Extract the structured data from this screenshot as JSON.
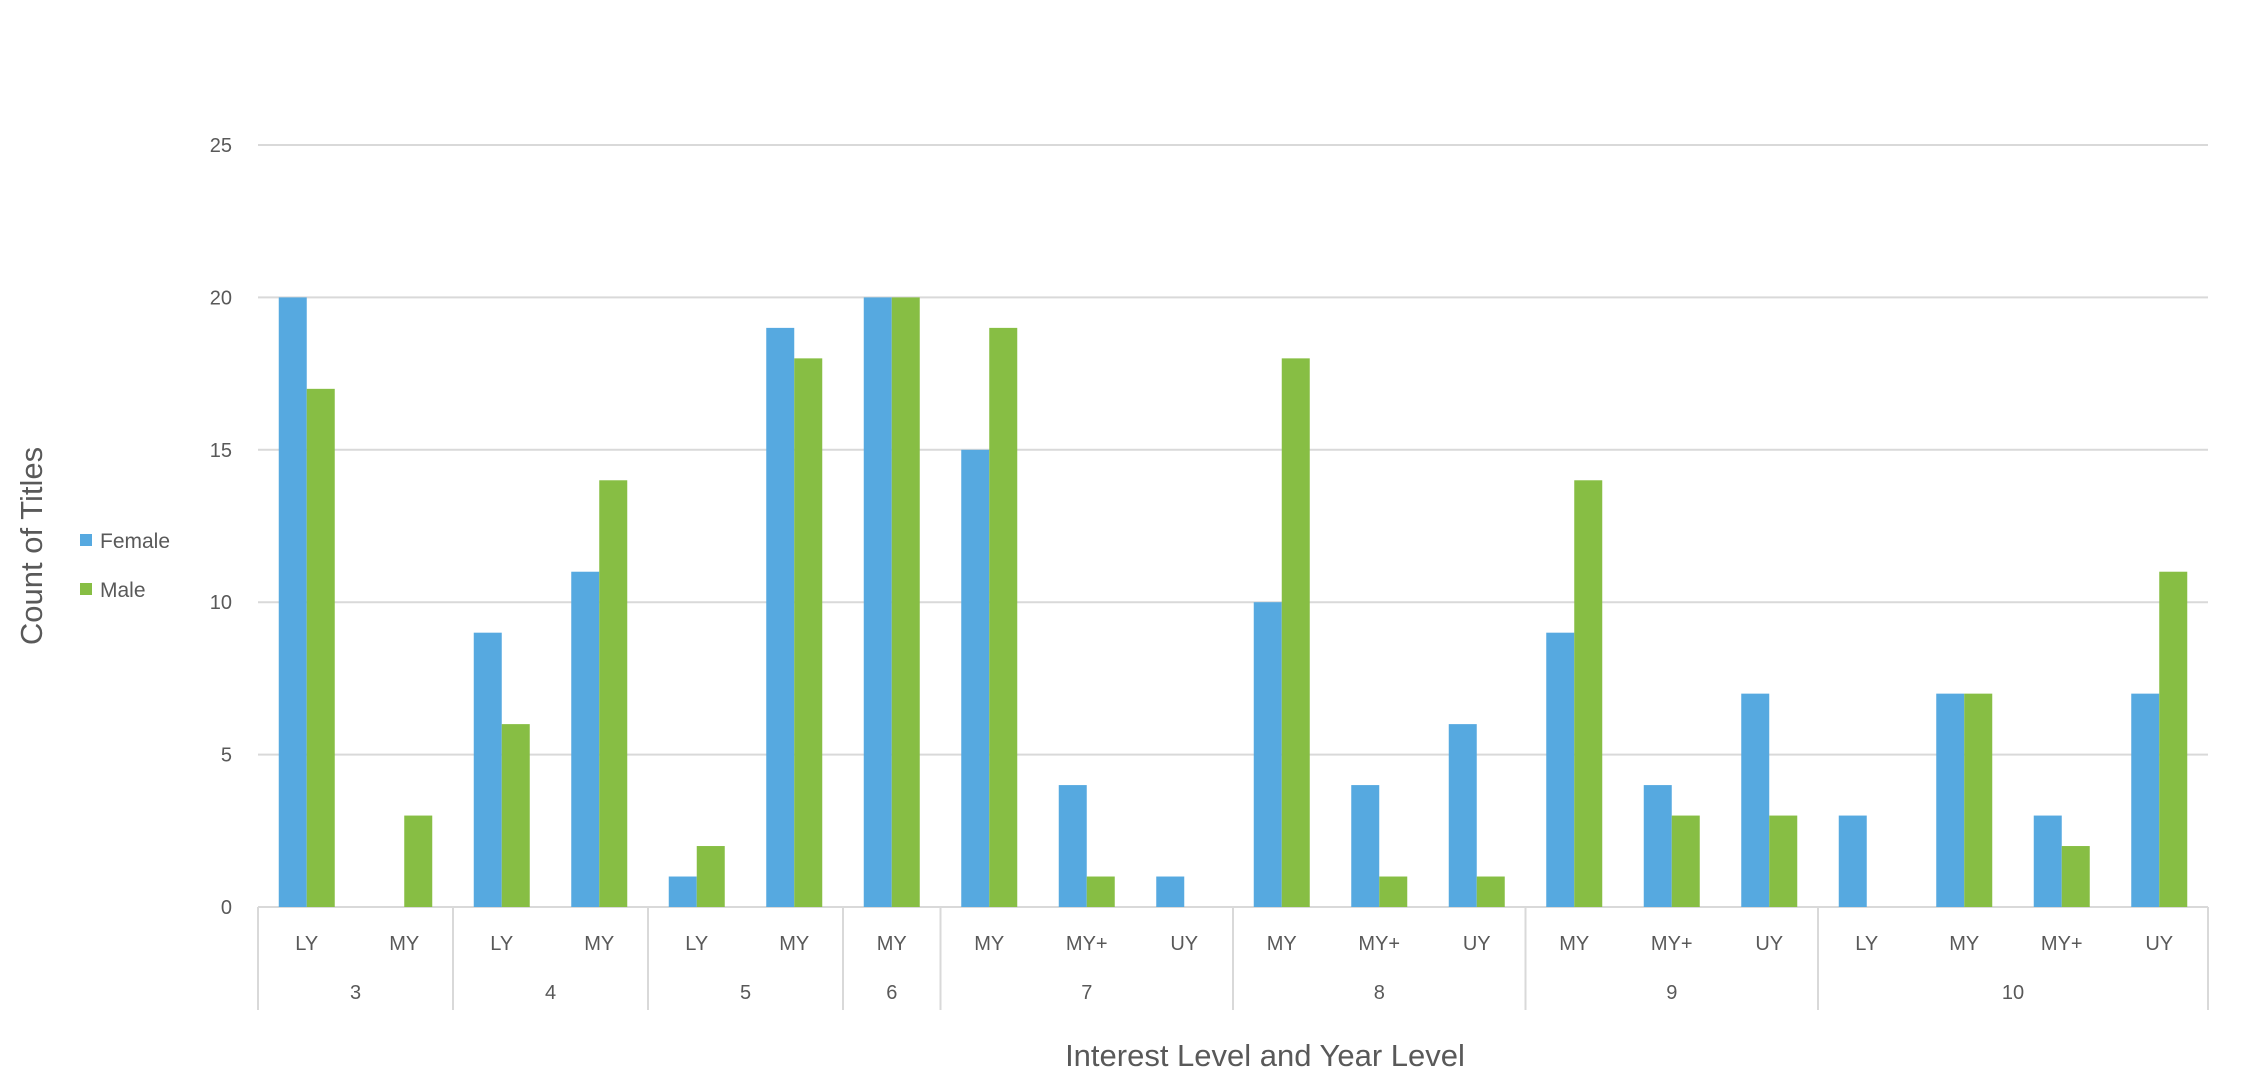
{
  "colors": {
    "female": "#56a9e0",
    "male": "#87be44",
    "grid": "#d9d9d9",
    "text": "#595959"
  },
  "chart_data": {
    "type": "bar",
    "xlabel": "Interest Level and Year Level",
    "ylabel": "Count of Titles",
    "ylim": [
      0,
      25
    ],
    "yticks": [
      0,
      5,
      10,
      15,
      20,
      25
    ],
    "grid": true,
    "legend_position": "left",
    "groups": [
      {
        "label": "3",
        "categories": [
          "LY",
          "MY"
        ]
      },
      {
        "label": "4",
        "categories": [
          "LY",
          "MY"
        ]
      },
      {
        "label": "5",
        "categories": [
          "LY",
          "MY"
        ]
      },
      {
        "label": "6",
        "categories": [
          "MY"
        ]
      },
      {
        "label": "7",
        "categories": [
          "MY",
          "MY+",
          "UY"
        ]
      },
      {
        "label": "8",
        "categories": [
          "MY",
          "MY+",
          "UY"
        ]
      },
      {
        "label": "9",
        "categories": [
          "MY",
          "MY+",
          "UY"
        ]
      },
      {
        "label": "10",
        "categories": [
          "LY",
          "MY",
          "MY+",
          "UY"
        ]
      }
    ],
    "categories": [
      "LY",
      "MY",
      "LY",
      "MY",
      "LY",
      "MY",
      "MY",
      "MY",
      "MY+",
      "UY",
      "MY",
      "MY+",
      "UY",
      "MY",
      "MY+",
      "UY",
      "LY",
      "MY",
      "MY+",
      "UY"
    ],
    "series": [
      {
        "name": "Female",
        "values": [
          20,
          0,
          9,
          11,
          1,
          19,
          20,
          15,
          4,
          1,
          10,
          4,
          6,
          9,
          4,
          7,
          3,
          7,
          3,
          7
        ]
      },
      {
        "name": "Male",
        "values": [
          17,
          3,
          6,
          14,
          2,
          18,
          20,
          19,
          1,
          0,
          18,
          1,
          1,
          14,
          3,
          3,
          0,
          7,
          2,
          11
        ]
      }
    ]
  }
}
